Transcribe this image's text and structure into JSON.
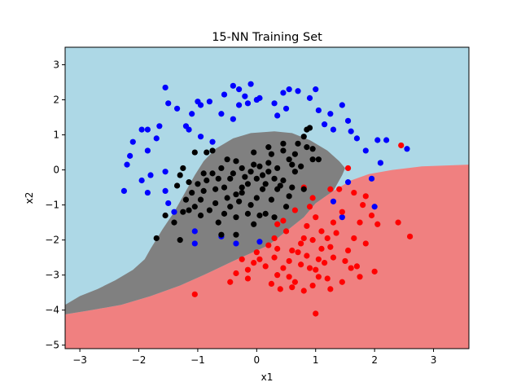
{
  "chart_data": {
    "type": "scatter",
    "title": "15-NN Training Set",
    "xlabel": "x1",
    "ylabel": "x2",
    "xlim": [
      -3.25,
      3.6
    ],
    "ylim": [
      -5.1,
      3.5
    ],
    "x_ticks": [
      -3,
      -2,
      -1,
      0,
      1,
      2,
      3
    ],
    "y_ticks": [
      -5,
      -4,
      -3,
      -2,
      -1,
      0,
      1,
      2,
      3
    ],
    "grid": false,
    "colors": {
      "blue_region": "#add8e6",
      "red_region": "#f08080",
      "gray_region": "#808080",
      "blue_points": "#0000ff",
      "red_points": "#ff0000",
      "black_points": "#000000"
    },
    "regions": {
      "red_boundary": [
        [
          -3.25,
          -4.12
        ],
        [
          -2.8,
          -4.0
        ],
        [
          -2.3,
          -3.85
        ],
        [
          -1.8,
          -3.6
        ],
        [
          -1.3,
          -3.3
        ],
        [
          -0.9,
          -3.0
        ],
        [
          -0.4,
          -2.6
        ],
        [
          0.2,
          -2.15
        ],
        [
          0.8,
          -1.35
        ],
        [
          1.0,
          -0.95
        ],
        [
          1.3,
          -0.6
        ],
        [
          1.6,
          -0.3
        ],
        [
          1.9,
          -0.12
        ],
        [
          2.3,
          0.0
        ],
        [
          2.8,
          0.1
        ],
        [
          3.6,
          0.15
        ]
      ],
      "gray_region": [
        [
          -3.25,
          -4.12
        ],
        [
          -3.25,
          -3.85
        ],
        [
          -3.0,
          -3.6
        ],
        [
          -2.7,
          -3.4
        ],
        [
          -2.4,
          -3.15
        ],
        [
          -2.1,
          -2.85
        ],
        [
          -1.9,
          -2.55
        ],
        [
          -1.8,
          -2.25
        ],
        [
          -1.6,
          -1.7
        ],
        [
          -1.4,
          -1.2
        ],
        [
          -1.2,
          -0.6
        ],
        [
          -1.05,
          -0.15
        ],
        [
          -0.9,
          0.25
        ],
        [
          -0.7,
          0.6
        ],
        [
          -0.4,
          0.9
        ],
        [
          -0.1,
          1.05
        ],
        [
          0.3,
          1.1
        ],
        [
          0.6,
          1.05
        ],
        [
          0.9,
          0.85
        ],
        [
          1.2,
          0.55
        ],
        [
          1.4,
          0.25
        ],
        [
          1.5,
          0.05
        ],
        [
          1.45,
          -0.15
        ],
        [
          1.3,
          -0.6
        ],
        [
          1.0,
          -0.95
        ],
        [
          0.8,
          -1.35
        ],
        [
          0.2,
          -2.15
        ],
        [
          -0.4,
          -2.6
        ],
        [
          -0.9,
          -3.0
        ],
        [
          -1.3,
          -3.3
        ],
        [
          -1.8,
          -3.6
        ],
        [
          -2.3,
          -3.85
        ],
        [
          -2.8,
          -4.0
        ]
      ]
    },
    "series": [
      {
        "color": "blue",
        "points": [
          [
            -1.55,
            2.35
          ],
          [
            -1.5,
            1.9
          ],
          [
            -1.35,
            1.75
          ],
          [
            -1.1,
            1.6
          ],
          [
            -1.0,
            1.95
          ],
          [
            -0.95,
            1.85
          ],
          [
            -0.8,
            1.95
          ],
          [
            -0.55,
            2.15
          ],
          [
            -0.4,
            2.4
          ],
          [
            -0.3,
            2.3
          ],
          [
            -0.2,
            2.1
          ],
          [
            -0.1,
            2.45
          ],
          [
            0.0,
            2.0
          ],
          [
            0.05,
            2.05
          ],
          [
            0.3,
            1.9
          ],
          [
            0.45,
            2.2
          ],
          [
            0.5,
            1.75
          ],
          [
            0.55,
            2.3
          ],
          [
            0.7,
            2.25
          ],
          [
            0.9,
            2.05
          ],
          [
            1.0,
            2.3
          ],
          [
            1.05,
            1.7
          ],
          [
            1.15,
            1.3
          ],
          [
            1.25,
            1.6
          ],
          [
            1.3,
            1.15
          ],
          [
            1.45,
            1.85
          ],
          [
            1.55,
            1.4
          ],
          [
            1.6,
            1.1
          ],
          [
            1.7,
            0.9
          ],
          [
            1.85,
            0.55
          ],
          [
            2.05,
            0.85
          ],
          [
            2.1,
            0.2
          ],
          [
            2.2,
            0.85
          ],
          [
            2.55,
            0.6
          ],
          [
            -1.65,
            1.25
          ],
          [
            -1.7,
            0.9
          ],
          [
            -1.85,
            0.55
          ],
          [
            -1.85,
            1.15
          ],
          [
            -1.95,
            1.15
          ],
          [
            -2.1,
            0.8
          ],
          [
            -2.15,
            0.4
          ],
          [
            -2.2,
            0.15
          ],
          [
            -2.25,
            -0.6
          ],
          [
            -1.95,
            -0.3
          ],
          [
            -1.85,
            -0.65
          ],
          [
            -1.8,
            -0.15
          ],
          [
            -1.55,
            -0.05
          ],
          [
            -1.55,
            -0.6
          ],
          [
            -1.5,
            -0.95
          ],
          [
            -1.4,
            -1.2
          ],
          [
            -1.05,
            -1.75
          ],
          [
            -1.05,
            -2.1
          ],
          [
            -0.6,
            -1.9
          ],
          [
            -0.35,
            -2.1
          ],
          [
            0.05,
            -2.05
          ],
          [
            -0.95,
            0.95
          ],
          [
            -0.75,
            0.8
          ],
          [
            -0.6,
            1.6
          ],
          [
            -0.4,
            1.45
          ],
          [
            -0.3,
            1.85
          ],
          [
            -0.15,
            1.9
          ],
          [
            1.55,
            -0.35
          ],
          [
            1.45,
            -1.35
          ],
          [
            1.95,
            -0.25
          ],
          [
            2.0,
            -1.05
          ],
          [
            1.3,
            -0.9
          ],
          [
            -1.2,
            1.25
          ],
          [
            -1.15,
            1.15
          ],
          [
            0.35,
            1.55
          ]
        ],
        "r": 3.6
      },
      {
        "color": "red",
        "points": [
          [
            2.45,
            0.7
          ],
          [
            1.55,
            0.05
          ],
          [
            1.4,
            -0.55
          ],
          [
            1.65,
            -0.65
          ],
          [
            1.85,
            -0.75
          ],
          [
            2.05,
            -1.55
          ],
          [
            2.4,
            -1.5
          ],
          [
            2.6,
            -1.9
          ],
          [
            1.8,
            -1.0
          ],
          [
            1.95,
            -1.3
          ],
          [
            1.75,
            -1.5
          ],
          [
            1.65,
            -1.95
          ],
          [
            1.85,
            -2.1
          ],
          [
            1.55,
            -2.3
          ],
          [
            1.6,
            -2.8
          ],
          [
            1.5,
            -2.6
          ],
          [
            1.3,
            -2.5
          ],
          [
            1.25,
            -2.2
          ],
          [
            1.1,
            -2.25
          ],
          [
            1.05,
            -2.55
          ],
          [
            1.0,
            -2.85
          ],
          [
            0.85,
            -2.45
          ],
          [
            0.8,
            -1.95
          ],
          [
            0.75,
            -2.1
          ],
          [
            0.7,
            -2.35
          ],
          [
            0.6,
            -2.3
          ],
          [
            0.55,
            -2.6
          ],
          [
            0.45,
            -2.8
          ],
          [
            0.35,
            -3.0
          ],
          [
            0.4,
            -3.4
          ],
          [
            0.25,
            -3.25
          ],
          [
            0.15,
            -2.75
          ],
          [
            0.05,
            -2.55
          ],
          [
            0.0,
            -2.35
          ],
          [
            -0.05,
            -2.65
          ],
          [
            -0.15,
            -2.85
          ],
          [
            -0.25,
            -2.55
          ],
          [
            -0.35,
            -2.95
          ],
          [
            -0.45,
            -3.2
          ],
          [
            -0.15,
            -3.1
          ],
          [
            0.6,
            -3.35
          ],
          [
            0.8,
            -3.45
          ],
          [
            0.95,
            -3.3
          ],
          [
            1.05,
            -3.05
          ],
          [
            1.2,
            -3.1
          ],
          [
            1.25,
            -3.4
          ],
          [
            1.45,
            -3.2
          ],
          [
            1.7,
            -2.75
          ],
          [
            1.75,
            -3.05
          ],
          [
            2.0,
            -2.9
          ],
          [
            1.1,
            -1.75
          ],
          [
            1.2,
            -1.95
          ],
          [
            1.35,
            -1.8
          ],
          [
            1.3,
            -1.5
          ],
          [
            1.45,
            -1.2
          ],
          [
            1.25,
            -0.55
          ],
          [
            0.95,
            -0.8
          ],
          [
            0.9,
            -1.05
          ],
          [
            0.65,
            -1.15
          ],
          [
            0.45,
            -1.45
          ],
          [
            0.5,
            -1.75
          ],
          [
            0.35,
            -1.55
          ],
          [
            0.3,
            -1.95
          ],
          [
            0.2,
            -2.15
          ],
          [
            0.95,
            -2.0
          ],
          [
            0.85,
            -1.6
          ],
          [
            1.0,
            -1.35
          ],
          [
            0.8,
            -0.5
          ],
          [
            1.0,
            -4.1
          ],
          [
            -1.05,
            -3.55
          ],
          [
            0.65,
            -3.2
          ],
          [
            0.55,
            -3.05
          ],
          [
            0.3,
            -2.5
          ],
          [
            0.9,
            -2.8
          ],
          [
            1.15,
            -2.65
          ],
          [
            0.75,
            -2.7
          ],
          [
            0.35,
            -2.25
          ]
        ],
        "r": 3.6
      },
      {
        "color": "black",
        "points": [
          [
            0.8,
            0.95
          ],
          [
            0.85,
            1.15
          ],
          [
            0.9,
            1.2
          ],
          [
            0.2,
            0.65
          ],
          [
            0.45,
            0.55
          ],
          [
            0.65,
            0.45
          ],
          [
            0.85,
            0.65
          ],
          [
            0.95,
            0.6
          ],
          [
            0.75,
            0.1
          ],
          [
            0.65,
            -0.05
          ],
          [
            0.55,
            0.3
          ],
          [
            0.35,
            0.05
          ],
          [
            0.2,
            0.2
          ],
          [
            0.05,
            0.1
          ],
          [
            -0.05,
            0.15
          ],
          [
            -0.1,
            -0.05
          ],
          [
            -0.2,
            -0.2
          ],
          [
            -0.25,
            0.05
          ],
          [
            -0.35,
            0.25
          ],
          [
            -0.4,
            -0.1
          ],
          [
            -0.5,
            0.3
          ],
          [
            -0.6,
            0.05
          ],
          [
            -0.65,
            -0.25
          ],
          [
            -0.7,
            -0.55
          ],
          [
            -0.75,
            -0.1
          ],
          [
            -0.85,
            -0.3
          ],
          [
            -0.9,
            -0.6
          ],
          [
            -0.95,
            -0.85
          ],
          [
            -1.05,
            -1.05
          ],
          [
            -1.1,
            -0.65
          ],
          [
            -1.15,
            -0.35
          ],
          [
            -1.25,
            0.05
          ],
          [
            -1.3,
            -0.15
          ],
          [
            -1.35,
            -0.45
          ],
          [
            -1.2,
            -0.85
          ],
          [
            -1.25,
            -1.2
          ],
          [
            -1.4,
            -1.5
          ],
          [
            -1.55,
            -1.3
          ],
          [
            -1.7,
            -1.95
          ],
          [
            -1.3,
            -2.0
          ],
          [
            -0.6,
            -1.85
          ],
          [
            -0.45,
            -1.05
          ],
          [
            -0.5,
            -0.8
          ],
          [
            -0.35,
            -0.7
          ],
          [
            -0.25,
            -0.5
          ],
          [
            -0.15,
            -0.4
          ],
          [
            0.0,
            -0.25
          ],
          [
            0.1,
            -0.15
          ],
          [
            0.2,
            -0.05
          ],
          [
            0.3,
            -0.25
          ],
          [
            0.35,
            -0.55
          ],
          [
            0.25,
            -0.85
          ],
          [
            0.3,
            -1.35
          ],
          [
            0.5,
            -1.05
          ],
          [
            0.55,
            -0.75
          ],
          [
            0.6,
            -0.5
          ],
          [
            0.45,
            -0.3
          ],
          [
            0.1,
            -0.55
          ],
          [
            0.0,
            -0.8
          ],
          [
            -0.1,
            -1.0
          ],
          [
            -0.15,
            -1.25
          ],
          [
            -0.35,
            -1.35
          ],
          [
            -0.55,
            -1.25
          ],
          [
            -0.65,
            -1.5
          ],
          [
            -0.8,
            -1.15
          ],
          [
            -0.95,
            -1.3
          ],
          [
            -0.7,
            -0.95
          ],
          [
            -0.55,
            -0.5
          ],
          [
            0.7,
            0.75
          ],
          [
            0.95,
            0.3
          ],
          [
            0.15,
            -1.25
          ],
          [
            -0.3,
            -0.9
          ],
          [
            1.05,
            0.3
          ],
          [
            0.8,
            -0.55
          ],
          [
            0.45,
            0.75
          ],
          [
            -1.0,
            -0.4
          ],
          [
            -1.15,
            -1.15
          ],
          [
            -0.45,
            -0.25
          ],
          [
            0.25,
            0.45
          ],
          [
            0.6,
            0.15
          ],
          [
            -0.05,
            0.5
          ],
          [
            -0.85,
            0.5
          ],
          [
            -1.05,
            0.5
          ],
          [
            -0.75,
            0.55
          ],
          [
            -0.9,
            -0.1
          ],
          [
            0.15,
            -0.4
          ],
          [
            -0.25,
            -0.65
          ],
          [
            0.4,
            -0.45
          ],
          [
            0.05,
            -1.3
          ],
          [
            -0.35,
            -1.85
          ],
          [
            -0.05,
            -1.55
          ]
        ],
        "r": 3.6
      }
    ]
  }
}
